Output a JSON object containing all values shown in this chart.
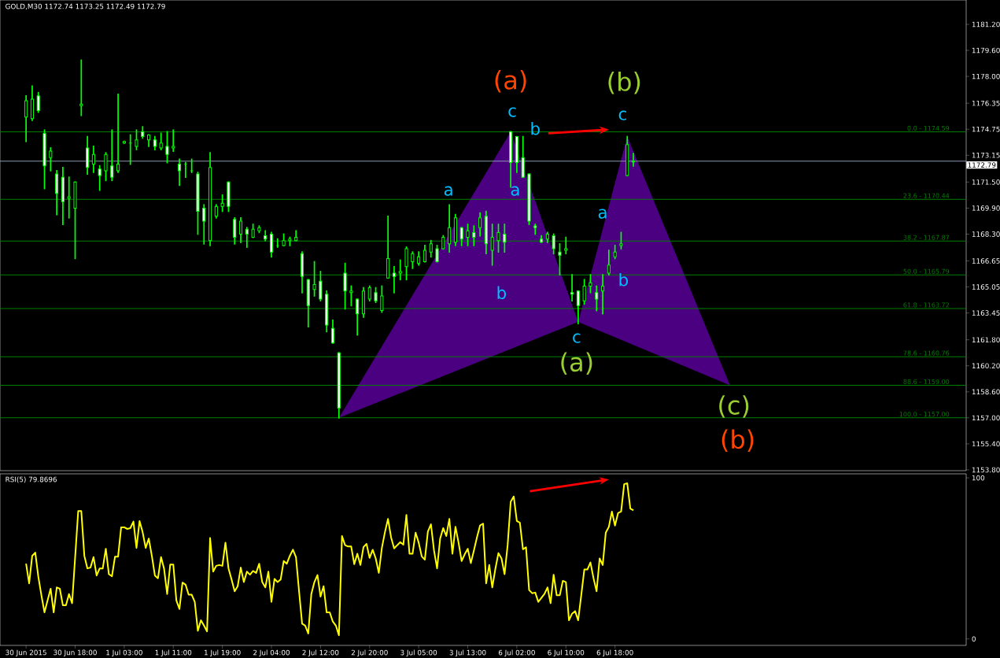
{
  "chart_data": [
    {
      "type": "candlestick",
      "title": "GOLD,M30 1172.74 1173.25 1172.49 1172.79",
      "color": "#00ff00",
      "categories": [
        null,
        null,
        null,
        null,
        null,
        null,
        null,
        null,
        null,
        null,
        null,
        null,
        null,
        null,
        null,
        null,
        null,
        null,
        null,
        null,
        null,
        null,
        null,
        null,
        null,
        null,
        null,
        null,
        null,
        null,
        null,
        null,
        null,
        null,
        null,
        null,
        null,
        null,
        null,
        null,
        null,
        null,
        null,
        null,
        null,
        null,
        null,
        null,
        null,
        null,
        null,
        null,
        null,
        null,
        null,
        null,
        null,
        null,
        null,
        null,
        null,
        null,
        null,
        null,
        null,
        null,
        null,
        null,
        null,
        null,
        null,
        null,
        null,
        null,
        null,
        null,
        null,
        null,
        null,
        null,
        null,
        null,
        null,
        null,
        null,
        null,
        null,
        null,
        null,
        null,
        null,
        null,
        null,
        null,
        null,
        null,
        null,
        null,
        null,
        null,
        null,
        null,
        null,
        null,
        null,
        null,
        null,
        null,
        null,
        null,
        null,
        null,
        null,
        null,
        null,
        null,
        null,
        null,
        null,
        null,
        null,
        null,
        null,
        null,
        null,
        null,
        null,
        null,
        null,
        null,
        null,
        null,
        null,
        null,
        null,
        null,
        null,
        null,
        null,
        null,
        null,
        null,
        null,
        null,
        null,
        null,
        null,
        null,
        null,
        null,
        null,
        null,
        null,
        null,
        null,
        null,
        null,
        null,
        null,
        null,
        null,
        null,
        null,
        null,
        null,
        null,
        null,
        null,
        null,
        null,
        null,
        null,
        null,
        null,
        null,
        null,
        null,
        null,
        null,
        null,
        null,
        null,
        null,
        null,
        null,
        null,
        null,
        null,
        null,
        null,
        null,
        null,
        null,
        null,
        null,
        null,
        null,
        null,
        null,
        null,
        null,
        null,
        null,
        null,
        null,
        null,
        null,
        null,
        null,
        null,
        null,
        null,
        null,
        null,
        null,
        null,
        null,
        null,
        null,
        null,
        null,
        null,
        null,
        null,
        null,
        null,
        null,
        null,
        null,
        null,
        null,
        null,
        null,
        null,
        null,
        null,
        null,
        null,
        null,
        null,
        null,
        null,
        null,
        null,
        null,
        null,
        null,
        null,
        null,
        null,
        null,
        null,
        null,
        null,
        null,
        null,
        null,
        null,
        null,
        null,
        null,
        null,
        null,
        null,
        null,
        null,
        null,
        null,
        null,
        null,
        null,
        null,
        null,
        null,
        null,
        null,
        null,
        null,
        null,
        null,
        null,
        null,
        null,
        null,
        null,
        null,
        null,
        null,
        null,
        null,
        null,
        null,
        null,
        null,
        null,
        null,
        null,
        null,
        null,
        null,
        null,
        null,
        null,
        null,
        null,
        null,
        null,
        null,
        null,
        null,
        null,
        null,
        null,
        null,
        null
      ],
      "ohlc": [
        null,
        null,
        null,
        null,
        null,
        null,
        null,
        null,
        [
          1175.5,
          1176.8,
          1174.0,
          1176.5
        ],
        null,
        [
          1175.4,
          1177.4,
          1175.3,
          1176.6
        ],
        null,
        [
          1176.8,
          1177.0,
          1175.8,
          1175.9
        ],
        null,
        [
          1174.5,
          1174.7,
          1171.1,
          1172.5
        ],
        null,
        [
          1173.0,
          1173.6,
          1172.2,
          1173.4
        ],
        null,
        [
          1172.0,
          1172.2,
          1169.5,
          1170.8
        ],
        null,
        [
          1171.8,
          1172.4,
          1168.9,
          1170.3
        ],
        null,
        [
          1170.5,
          1171.8,
          1169.3,
          1170.6
        ],
        null,
        [
          1169.9,
          1171.5,
          1166.8,
          1171.5
        ],
        null,
        [
          1176.2,
          1179.0,
          1175.6,
          1176.3
        ],
        null,
        [
          1173.6,
          1174.3,
          1172.0,
          1172.4
        ],
        null,
        [
          1172.6,
          1173.7,
          1172.1,
          1173.2
        ],
        null,
        [
          1172.3,
          1172.5,
          1171.0,
          1171.9
        ],
        null,
        [
          1172.2,
          1173.3,
          1171.6,
          1173.2
        ],
        null,
        [
          1172.5,
          1174.7,
          1171.6,
          1171.8
        ],
        null,
        [
          1172.2,
          1176.9,
          1172.1,
          1172.6
        ],
        null,
        [
          1173.9,
          1174.0,
          1173.9,
          1174.0
        ],
        null,
        [
          1173.9,
          1174.4,
          1172.6,
          1173.9
        ],
        null,
        [
          1173.7,
          1174.7,
          1173.5,
          1174.1
        ],
        null,
        [
          1174.6,
          1174.9,
          1174.2,
          1174.3
        ],
        null,
        [
          1174.1,
          1174.4,
          1173.7,
          1174.4
        ],
        null,
        [
          1174.1,
          1174.3,
          1173.5,
          1173.7
        ],
        null,
        [
          1173.6,
          1174.5,
          1173.5,
          1173.9
        ],
        null,
        [
          1173.7,
          1174.6,
          1172.7,
          1173.2
        ],
        null,
        [
          1173.6,
          1174.7,
          1173.4,
          1173.7
        ],
        null,
        [
          1172.6,
          1172.9,
          1171.3,
          1172.2
        ],
        null,
        [
          1172.6,
          1172.7,
          1171.8,
          1172.6
        ],
        null,
        [
          1172.2,
          1172.9,
          1172.1,
          1172.2
        ],
        null,
        [
          1172.0,
          1172.1,
          1168.3,
          1169.7
        ],
        null,
        [
          1169.9,
          1170.1,
          1167.7,
          1169.1
        ],
        null,
        [
          1167.9,
          1173.3,
          1167.6,
          1172.4
        ],
        null,
        [
          1169.4,
          1170.1,
          1169.3,
          1170.0
        ],
        null,
        [
          1170.0,
          1170.7,
          1169.7,
          1170.2
        ],
        null,
        [
          1171.5,
          1171.5,
          1169.7,
          1170.0
        ],
        null,
        [
          1169.2,
          1169.3,
          1167.7,
          1168.1
        ],
        null,
        [
          1168.3,
          1169.3,
          1167.8,
          1169.1
        ],
        null,
        [
          1168.6,
          1168.7,
          1167.5,
          1168.3
        ],
        null,
        [
          1168.1,
          1168.9,
          1168.1,
          1168.6
        ],
        null,
        [
          1168.5,
          1168.8,
          1168.4,
          1168.7
        ],
        null,
        [
          1168.2,
          1168.5,
          1167.9,
          1168.0
        ],
        null,
        [
          1168.3,
          1168.4,
          1166.9,
          1167.2
        ],
        null,
        [
          1167.6,
          1168.0,
          1167.5,
          1167.6
        ],
        null,
        [
          1167.6,
          1168.3,
          1167.6,
          1167.9
        ],
        null,
        [
          1167.9,
          1168.1,
          1167.6,
          1168.0
        ],
        null,
        [
          1167.9,
          1168.5,
          1167.9,
          1168.1
        ],
        null,
        [
          1167.1,
          1167.2,
          1164.7,
          1165.7
        ],
        null,
        [
          1165.5,
          1165.5,
          1162.6,
          1163.9
        ],
        null,
        [
          1164.9,
          1166.6,
          1164.5,
          1165.2
        ],
        null,
        [
          1165.4,
          1166.0,
          1164.2,
          1164.3
        ],
        null,
        [
          1164.6,
          1164.8,
          1162.3,
          1162.7
        ],
        null,
        [
          1162.5,
          1163.0,
          1161.6,
          1161.6
        ],
        null,
        [
          1161.0,
          1161.0,
          1157.0,
          1157.6
        ],
        null,
        [
          1165.9,
          1166.5,
          1163.7,
          1164.8
        ],
        null,
        [
          1164.7,
          1165.1,
          1163.9,
          1164.8
        ],
        null,
        [
          1164.3,
          1164.3,
          1162.1,
          1163.4
        ],
        null,
        [
          1163.4,
          1165.0,
          1163.2,
          1164.8
        ],
        null,
        [
          1164.3,
          1165.1,
          1164.2,
          1165.0
        ],
        null,
        [
          1164.7,
          1165.0,
          1164.1,
          1164.2
        ],
        null,
        [
          1163.6,
          1165.1,
          1163.5,
          1164.5
        ],
        null,
        [
          1165.6,
          1169.4,
          1165.6,
          1166.8
        ],
        null,
        [
          1165.9,
          1166.3,
          1164.7,
          1165.7
        ],
        null,
        [
          1165.9,
          1166.7,
          1165.5,
          1166.0
        ],
        null,
        [
          1166.3,
          1167.5,
          1165.5,
          1167.4
        ],
        null,
        [
          1166.6,
          1167.2,
          1166.2,
          1167.1
        ],
        null,
        [
          1166.5,
          1167.2,
          1166.4,
          1166.9
        ],
        null,
        [
          1166.6,
          1167.6,
          1166.6,
          1167.3
        ],
        null,
        [
          1167.2,
          1167.9,
          1166.9,
          1167.7
        ],
        null,
        [
          1167.4,
          1167.6,
          1166.6,
          1166.6
        ],
        null,
        [
          1167.4,
          1168.2,
          1167.4,
          1168.1
        ],
        null,
        [
          1167.7,
          1170.1,
          1167.2,
          1168.7
        ],
        null,
        [
          1167.8,
          1169.5,
          1167.6,
          1169.3
        ],
        null,
        [
          1168.7,
          1168.7,
          1167.6,
          1168.0
        ],
        null,
        [
          1168.1,
          1168.9,
          1167.6,
          1168.5
        ],
        null,
        [
          1168.4,
          1168.8,
          1167.6,
          1168.1
        ],
        null,
        [
          1168.7,
          1169.6,
          1168.2,
          1169.3
        ],
        null,
        [
          1169.4,
          1169.7,
          1167.1,
          1167.7
        ],
        null,
        [
          1167.3,
          1168.9,
          1166.4,
          1168.1
        ],
        null,
        [
          1167.9,
          1168.9,
          1167.2,
          1168.4
        ],
        null,
        [
          1168.3,
          1168.9,
          1167.2,
          1167.8
        ],
        null,
        [
          1174.6,
          1174.6,
          1171.2,
          1172.7
        ],
        null,
        [
          1174.3,
          1174.3,
          1172.1,
          1172.7
        ],
        null,
        [
          1173.0,
          1174.3,
          1171.8,
          1171.8
        ],
        null,
        [
          1172.0,
          1172.0,
          1168.9,
          1169.1
        ],
        null,
        [
          1168.8,
          1168.9,
          1168.3,
          1168.7
        ],
        null,
        [
          1168.0,
          1168.2,
          1167.8,
          1167.8
        ],
        null,
        [
          1168.0,
          1168.4,
          1167.8,
          1168.3
        ],
        null,
        [
          1168.2,
          1168.3,
          1167.1,
          1167.4
        ],
        null,
        [
          1167.2,
          1167.7,
          1165.8,
          1167.0
        ],
        null,
        [
          1167.3,
          1168.1,
          1167.1,
          1167.4
        ],
        null,
        [
          1164.7,
          1165.8,
          1164.2,
          1164.6
        ],
        null,
        [
          1164.8,
          1164.8,
          1162.8,
          1163.9
        ],
        null,
        [
          1164.2,
          1165.5,
          1164.0,
          1165.1
        ],
        null,
        [
          1165.1,
          1165.8,
          1164.7,
          1165.3
        ],
        null,
        [
          1164.7,
          1165.1,
          1163.6,
          1164.3
        ],
        null,
        [
          1164.8,
          1165.8,
          1163.4,
          1165.1
        ],
        null,
        [
          1165.9,
          1167.3,
          1165.8,
          1166.4
        ],
        null,
        [
          1166.9,
          1167.6,
          1166.8,
          1167.2
        ],
        null,
        [
          1167.6,
          1168.4,
          1167.4,
          1167.7
        ],
        null,
        [
          1171.9,
          1174.3,
          1171.9,
          1173.8
        ],
        null,
        [
          1172.74,
          1173.25,
          1172.49,
          1172.79
        ],
        null,
        null,
        null,
        null,
        null,
        null,
        null,
        null,
        null,
        null,
        null,
        null,
        null,
        null,
        null,
        null,
        null,
        null,
        null,
        null,
        null,
        null,
        null,
        null,
        null,
        null,
        null,
        null,
        null,
        null,
        null,
        null,
        null,
        null,
        null,
        null,
        null,
        null,
        null,
        null,
        null,
        null,
        null,
        null,
        null,
        null,
        null,
        null,
        null,
        null,
        null,
        null,
        null,
        null,
        null,
        null,
        null,
        null,
        null,
        null,
        null,
        null,
        null,
        null,
        null,
        null,
        null,
        null,
        null,
        null,
        null,
        null,
        null,
        null,
        null,
        null,
        null,
        null,
        null,
        null,
        null,
        null,
        null,
        null,
        null,
        null,
        null,
        null,
        null,
        null,
        null,
        null,
        null,
        null,
        null,
        null,
        null,
        null,
        null,
        null,
        null,
        null,
        null,
        null,
        null,
        null,
        null,
        null
      ],
      "ylim": [
        1153.75,
        1182.7
      ],
      "tick_labels": "y",
      "yticks": [
        {
          "value": 1153.8,
          "label": "1153.80"
        },
        {
          "value": 1155.4,
          "label": "1155.40"
        },
        {
          "value": 1157,
          "label": "1157.00"
        },
        {
          "value": 1158.6,
          "label": "1158.60"
        },
        {
          "value": 1160.2,
          "label": "1160.20"
        },
        {
          "value": 1161.8,
          "label": "1161.80"
        },
        {
          "value": 1163.45,
          "label": "1163.45"
        },
        {
          "value": 1165.05,
          "label": "1165.05"
        },
        {
          "value": 1166.65,
          "label": "1166.65"
        },
        {
          "value": 1168.3,
          "label": "1168.30"
        },
        {
          "value": 1169.9,
          "label": "1169.90"
        },
        {
          "value": 1171.5,
          "label": "1171.50"
        },
        {
          "value": 1173.15,
          "label": "1173.15"
        },
        {
          "value": 1174.75,
          "label": "1174.75"
        },
        {
          "value": 1176.35,
          "label": "1176.35"
        },
        {
          "value": 1178,
          "label": "1178.00"
        },
        {
          "value": 1179.6,
          "label": "1179.60"
        },
        {
          "value": 1181.2,
          "label": "1181.20"
        }
      ],
      "ref_lines": [
        {
          "axis": "y",
          "value": 1174.59,
          "color": "#007f00"
        },
        {
          "axis": "y",
          "value": 1170.44,
          "color": "#007f00"
        },
        {
          "axis": "y",
          "value": 1167.87,
          "color": "#007f00"
        },
        {
          "axis": "y",
          "value": 1165.79,
          "color": "#007f00"
        },
        {
          "axis": "y",
          "value": 1163.72,
          "color": "#007f00"
        },
        {
          "axis": "y",
          "value": 1160.76,
          "color": "#007f00"
        },
        {
          "axis": "y",
          "value": 1159.0,
          "color": "#007f00"
        },
        {
          "axis": "y",
          "value": 1157.0,
          "color": "#007f00"
        },
        {
          "axis": "y",
          "value": 1172.79,
          "label": "1172.79",
          "color": "#8a9ab0"
        }
      ],
      "annotations": [
        "(a)",
        "(b)",
        "c",
        "b",
        "c",
        "a",
        "a",
        "a",
        "b",
        "b",
        "c",
        "(a)",
        "(c)",
        "(b)",
        "0.0 - 1174.59",
        "23.6 - 1170.44",
        "38.2 - 1167.87",
        "50.0 - 1165.79",
        "61.8 - 1163.72",
        "78.6 - 1160.76",
        "88.6 - 1159.00",
        "100.0 - 1157.00"
      ]
    },
    {
      "type": "line",
      "title": "RSI(5) 79.8696",
      "color": "#ffff00",
      "categories": [
        null,
        null,
        null,
        null,
        null,
        null,
        null,
        null,
        "30 Jun 2015",
        null,
        null,
        null,
        null,
        null,
        null,
        null,
        null,
        null,
        null,
        null,
        null,
        null,
        null,
        null,
        "30 Jun 18:00",
        null,
        null,
        null,
        null,
        null,
        null,
        null,
        null,
        null,
        null,
        null,
        null,
        null,
        null,
        null,
        "1 Jul 03:00",
        null,
        null,
        null,
        null,
        null,
        null,
        null,
        null,
        null,
        null,
        null,
        null,
        null,
        null,
        null,
        "1 Jul 11:00",
        null,
        null,
        null,
        null,
        null,
        null,
        null,
        null,
        null,
        null,
        null,
        null,
        null,
        null,
        null,
        "1 Jul 19:00",
        null,
        null,
        null,
        null,
        null,
        null,
        null,
        null,
        null,
        null,
        null,
        null,
        null,
        null,
        null,
        "2 Jul 04:00",
        null,
        null,
        null,
        null,
        null,
        null,
        null,
        null,
        null,
        null,
        null,
        null,
        null,
        null,
        null,
        "2 Jul 12:00",
        null,
        null,
        null,
        null,
        null,
        null,
        null,
        null,
        null,
        null,
        null,
        null,
        null,
        null,
        null,
        "2 Jul 20:00",
        null,
        null,
        null,
        null,
        null,
        null,
        null,
        null,
        null,
        null,
        null,
        null,
        null,
        null,
        null,
        "3 Jul 05:00",
        null,
        null,
        null,
        null,
        null,
        null,
        null,
        null,
        null,
        null,
        null,
        null,
        null,
        null,
        null,
        "3 Jul 13:00",
        null,
        null,
        null,
        null,
        null,
        null,
        null,
        null,
        null,
        null,
        null,
        null,
        null,
        null,
        null,
        "6 Jul 02:00",
        null,
        null,
        null,
        null,
        null,
        null,
        null,
        null,
        null,
        null,
        null,
        null,
        null,
        null,
        null,
        "6 Jul 10:00",
        null,
        null,
        null,
        null,
        null,
        null,
        null,
        null,
        null,
        null,
        null,
        null,
        null,
        null,
        null,
        "6 Jul 18:00",
        null,
        null,
        null,
        null,
        null,
        null,
        null,
        null,
        null,
        null,
        null,
        null,
        null,
        null,
        null,
        null,
        null,
        null,
        null,
        null,
        null,
        null,
        null,
        null,
        null,
        null,
        null,
        null,
        null,
        null,
        null,
        null,
        null,
        null,
        null,
        null,
        null,
        null,
        null,
        null,
        null,
        null,
        null,
        null,
        null,
        null,
        null,
        null,
        null,
        null,
        null,
        null,
        null,
        null,
        null,
        null,
        null,
        null,
        null,
        null,
        null,
        null,
        null,
        null,
        null,
        null,
        null,
        null,
        null,
        null,
        null,
        null,
        null,
        null,
        null,
        null,
        null,
        null,
        null,
        null,
        null,
        null,
        null,
        null,
        null,
        null,
        null,
        null,
        null,
        null,
        null,
        null,
        null,
        null,
        null,
        null,
        null,
        null,
        null,
        null,
        null,
        null,
        null,
        null,
        null,
        null,
        null,
        null,
        null,
        null,
        null,
        null,
        null,
        null
      ],
      "values": [
        null,
        null,
        null,
        null,
        null,
        null,
        null,
        null,
        46.7,
        34.5,
        51.6,
        53.6,
        38.6,
        27.1,
        16.5,
        23.9,
        31.2,
        16.5,
        32,
        31.2,
        20.9,
        20.9,
        27.9,
        22.2,
        50.8,
        79.4,
        79.4,
        51.6,
        43.8,
        44.3,
        50.8,
        39.4,
        43.8,
        43.8,
        56,
        40.2,
        38.9,
        51.1,
        51.1,
        69.3,
        69.3,
        68.3,
        68.8,
        72.9,
        56.5,
        73.2,
        66.3,
        56.5,
        62.3,
        51.6,
        39.4,
        37.7,
        50.8,
        43.5,
        27.9,
        46.2,
        46.2,
        23.9,
        18.6,
        35,
        33.7,
        27.5,
        27.5,
        23,
        5.1,
        11.6,
        8.3,
        4.7,
        62.7,
        41.8,
        45.4,
        45.9,
        45.4,
        59.8,
        43.8,
        36.9,
        29.6,
        32.8,
        44.3,
        35.3,
        41.8,
        39.9,
        42.2,
        41,
        46.7,
        35.3,
        32,
        41.8,
        23,
        37.3,
        35.3,
        36.9,
        48.4,
        46.7,
        51.6,
        55.4,
        50.8,
        29.6,
        9.5,
        8.3,
        3.4,
        27.9,
        35.3,
        39.7,
        26.3,
        32.8,
        16.5,
        16.5,
        10.8,
        8.3,
        2.3,
        63.9,
        58.2,
        57.4,
        57.4,
        46.4,
        52.9,
        45.9,
        57,
        59,
        50.3,
        55.4,
        50,
        41,
        56.5,
        66.3,
        74.5,
        63.1,
        56.2,
        58.2,
        60.1,
        58.5,
        77,
        52.9,
        52.9,
        66,
        59.8,
        51.3,
        49.2,
        66.7,
        71.2,
        54.9,
        43.8,
        62.3,
        68.8,
        63.9,
        74.5,
        52.9,
        69.6,
        59.8,
        48.4,
        52.5,
        56,
        47.1,
        54.9,
        63.1,
        70.4,
        71.6,
        34.5,
        45.9,
        32,
        43.5,
        53.3,
        50,
        40.2,
        58.2,
        85.1,
        88.4,
        73.2,
        72.1,
        55.7,
        56.9,
        30.4,
        28.4,
        28.8,
        23,
        25.5,
        27.9,
        32,
        22.2,
        39.9,
        27.1,
        27.1,
        36.1,
        35.3,
        11.6,
        15.7,
        17.3,
        11.6,
        27.1,
        43.1,
        43.1,
        47.5,
        37.7,
        29.6,
        50,
        45.9,
        66,
        69.6,
        79.1,
        70.4,
        78.1,
        79.1,
        96.1,
        96.6,
        81,
        79.9,
        null,
        null,
        null,
        null,
        null,
        null,
        null,
        null,
        null,
        null,
        null,
        null,
        null,
        null,
        null,
        null,
        null,
        null,
        null,
        null,
        null,
        null,
        null,
        null,
        null,
        null,
        null,
        null,
        null,
        null,
        null,
        null,
        null,
        null,
        null,
        null,
        null,
        null,
        null,
        null,
        null,
        null,
        null,
        null,
        null,
        null,
        null,
        null,
        null,
        null,
        null,
        null,
        null,
        null,
        null,
        null,
        null,
        null,
        null,
        null,
        null,
        null,
        null,
        null,
        null,
        null,
        null,
        null,
        null,
        null,
        null,
        null,
        null,
        null,
        null,
        null,
        null,
        null,
        null,
        null,
        null,
        null,
        null,
        null,
        null,
        null,
        null,
        null,
        null,
        null,
        null,
        null,
        null,
        null,
        null,
        null,
        null,
        null,
        null,
        null,
        null,
        null,
        null,
        null,
        null,
        null,
        null,
        null
      ],
      "ylim": [
        -4,
        102.5
      ],
      "yticks": [
        {
          "value": 0,
          "label": "0"
        },
        {
          "value": 100,
          "label": "100"
        }
      ]
    }
  ]
}
